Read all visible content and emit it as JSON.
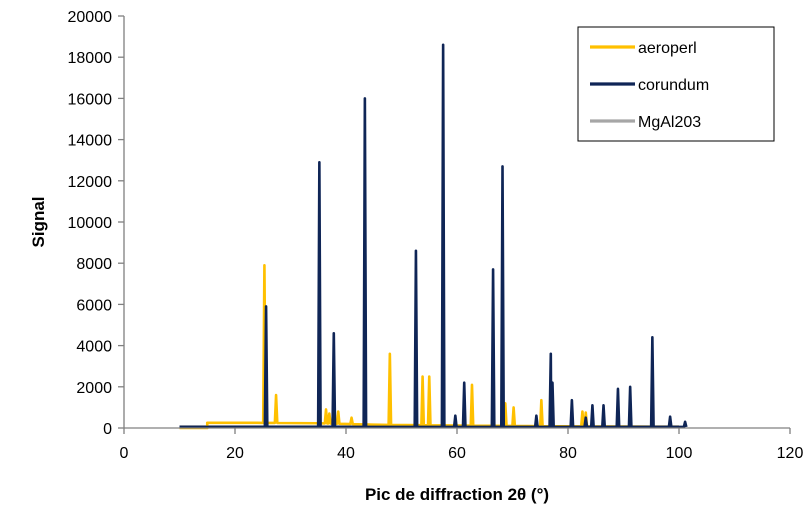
{
  "chart_data": {
    "type": "line",
    "xlabel": "Pic de diffraction 2θ (°)",
    "ylabel": "Signal",
    "xlim": [
      0,
      120
    ],
    "ylim": [
      0,
      20000
    ],
    "x_ticks": [
      0,
      20,
      40,
      60,
      80,
      100,
      120
    ],
    "y_ticks": [
      0,
      2000,
      4000,
      6000,
      8000,
      10000,
      12000,
      14000,
      16000,
      18000,
      20000
    ],
    "grid": false,
    "legend_position": "top-right",
    "series": [
      {
        "name": "aeroperl",
        "color": "#ffc000",
        "baseline": [
          [
            10,
            0
          ],
          [
            15,
            0
          ],
          [
            15,
            250
          ],
          [
            24,
            250
          ],
          [
            35,
            230
          ],
          [
            45,
            160
          ],
          [
            55,
            130
          ],
          [
            75,
            90
          ],
          [
            100,
            50
          ]
        ],
        "peaks": [
          [
            25.3,
            7900
          ],
          [
            27.4,
            1600
          ],
          [
            36.4,
            900
          ],
          [
            37.0,
            700
          ],
          [
            37.8,
            2000
          ],
          [
            38.6,
            800
          ],
          [
            41.0,
            500
          ],
          [
            47.9,
            3600
          ],
          [
            53.8,
            2500
          ],
          [
            55.0,
            2500
          ],
          [
            62.7,
            2100
          ],
          [
            68.7,
            1200
          ],
          [
            70.2,
            1000
          ],
          [
            75.2,
            1350
          ],
          [
            82.6,
            800
          ],
          [
            83.2,
            750
          ]
        ]
      },
      {
        "name": "corundum",
        "color": "#0f2556",
        "baseline": [
          [
            10,
            50
          ],
          [
            100,
            50
          ]
        ],
        "peaks": [
          [
            25.6,
            5900
          ],
          [
            35.2,
            12900
          ],
          [
            37.8,
            4600
          ],
          [
            43.4,
            16000
          ],
          [
            52.6,
            8600
          ],
          [
            57.5,
            18600
          ],
          [
            59.7,
            600
          ],
          [
            61.3,
            2200
          ],
          [
            66.5,
            7700
          ],
          [
            68.2,
            12700
          ],
          [
            74.3,
            600
          ],
          [
            76.9,
            3600
          ],
          [
            77.2,
            2200
          ],
          [
            80.7,
            1350
          ],
          [
            83.2,
            500
          ],
          [
            84.4,
            1100
          ],
          [
            86.4,
            1100
          ],
          [
            89.0,
            1900
          ],
          [
            91.2,
            2000
          ],
          [
            95.2,
            4400
          ],
          [
            98.4,
            550
          ],
          [
            101.1,
            300
          ]
        ]
      },
      {
        "name": "MgAl203",
        "color": "#a6a6a6",
        "baseline": [
          [
            10,
            60
          ],
          [
            100,
            60
          ]
        ],
        "peaks": []
      }
    ]
  }
}
